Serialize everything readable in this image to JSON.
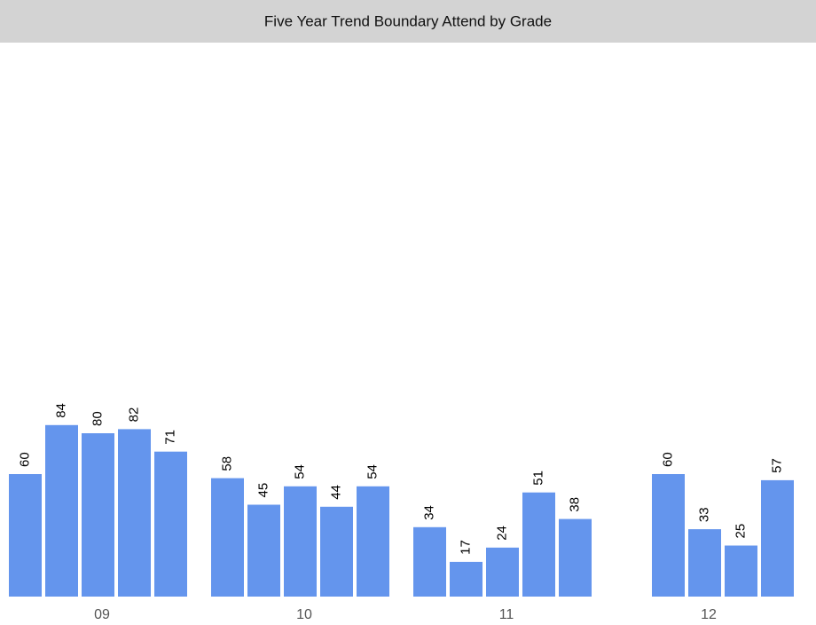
{
  "chart_data": {
    "type": "bar",
    "title": "Five Year Trend Boundary Attend by Grade",
    "categories": [
      "09",
      "10",
      "11",
      "12"
    ],
    "series": [
      {
        "color": "#6495ed",
        "values": [
          60,
          58,
          34,
          null
        ]
      },
      {
        "color": "#6495ed",
        "values": [
          84,
          45,
          17,
          60
        ]
      },
      {
        "color": "#6495ed",
        "values": [
          80,
          54,
          24,
          33
        ]
      },
      {
        "color": "#6495ed",
        "values": [
          82,
          44,
          51,
          25
        ]
      },
      {
        "color": "#6495ed",
        "values": [
          71,
          54,
          38,
          57
        ]
      }
    ],
    "ylim": [
      0,
      270
    ]
  }
}
